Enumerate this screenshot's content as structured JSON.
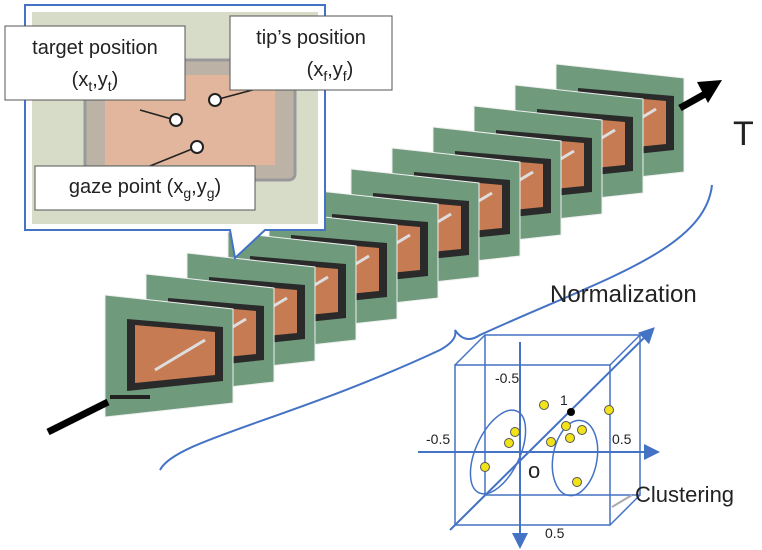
{
  "callouts": [
    {
      "title": "target position",
      "coords": [
        {
          "text": "(x"
        },
        {
          "text": "t",
          "sub": true
        },
        {
          "text": ",y"
        },
        {
          "text": "t",
          "sub": true
        },
        {
          "text": ")"
        }
      ]
    },
    {
      "title": "tip’s position",
      "coords": [
        {
          "text": "(x"
        },
        {
          "text": "f",
          "sub": true
        },
        {
          "text": ",y"
        },
        {
          "text": "f",
          "sub": true
        },
        {
          "text": ")"
        }
      ]
    },
    {
      "line": [
        {
          "text": "gaze point (x"
        },
        {
          "text": "g",
          "sub": true
        },
        {
          "text": ",y"
        },
        {
          "text": "g",
          "sub": true
        },
        {
          "text": ")"
        }
      ]
    }
  ],
  "time_label": "T",
  "normalization_label": "Normalization",
  "clustering_label": "Clustering",
  "cube_labels": {
    "top_neg": "-0.5",
    "one": "1",
    "left_neg": "-0.5",
    "right_pos": "0.5",
    "origin": "o",
    "bottom_pos": "0.5"
  }
}
